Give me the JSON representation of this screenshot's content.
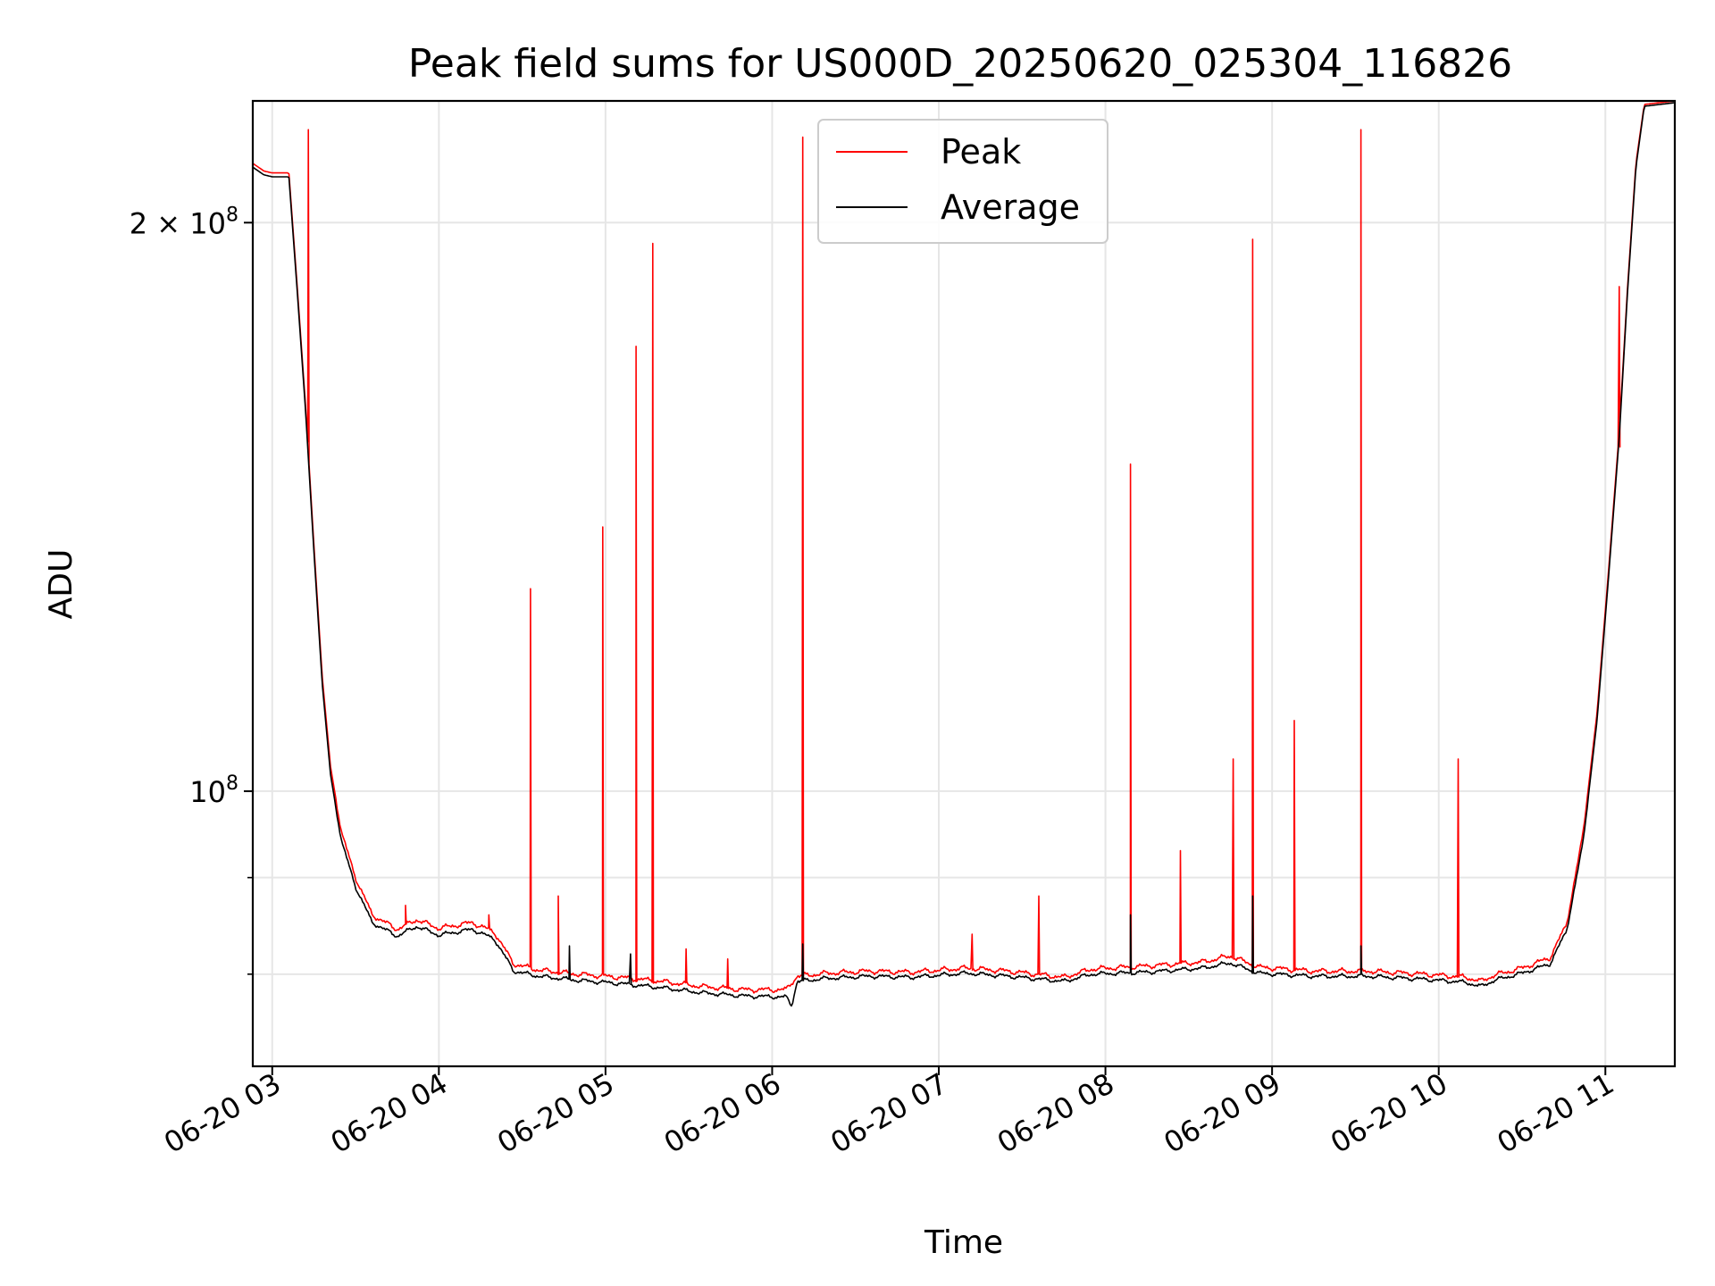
{
  "chart_data": {
    "type": "line",
    "title": "Peak field sums for US000D_20250620_025304_116826",
    "xlabel": "Time",
    "ylabel": "ADU",
    "yscale": "log",
    "grid": true,
    "legend_position": "top-center",
    "xlim": [
      "2025-06-20 02:53",
      "2025-06-20 11:25"
    ],
    "ylim": [
      71500000,
      232000000
    ],
    "x_ticks": [
      {
        "t": "2025-06-20 03:00",
        "label": "06-20 03"
      },
      {
        "t": "2025-06-20 04:00",
        "label": "06-20 04"
      },
      {
        "t": "2025-06-20 05:00",
        "label": "06-20 05"
      },
      {
        "t": "2025-06-20 06:00",
        "label": "06-20 06"
      },
      {
        "t": "2025-06-20 07:00",
        "label": "06-20 07"
      },
      {
        "t": "2025-06-20 08:00",
        "label": "06-20 08"
      },
      {
        "t": "2025-06-20 09:00",
        "label": "06-20 09"
      },
      {
        "t": "2025-06-20 10:00",
        "label": "06-20 10"
      },
      {
        "t": "2025-06-20 11:00",
        "label": "06-20 11"
      }
    ],
    "y_major_ticks": [
      {
        "value": 100000000,
        "base": "10",
        "exp": "8"
      },
      {
        "value": 200000000,
        "mant": "2",
        "base": "10",
        "exp": "8"
      }
    ],
    "y_minor_ticks": [
      80000000,
      90000000
    ],
    "series": [
      {
        "name": "Peak",
        "color": "#ff0000",
        "points": [
          [
            "2025-06-20 02:53",
            215000000
          ],
          [
            "2025-06-20 02:57",
            213000000
          ],
          [
            "2025-06-20 03:00",
            212500000
          ],
          [
            "2025-06-20 03:06",
            212500000
          ],
          [
            "2025-06-20 03:09",
            185000000
          ],
          [
            "2025-06-20 03:12",
            160000000
          ],
          [
            "2025-06-20 03:15",
            135000000
          ],
          [
            "2025-06-20 03:18",
            115000000
          ],
          [
            "2025-06-20 03:21",
            103000000
          ],
          [
            "2025-06-20 03:25",
            95000000
          ],
          [
            "2025-06-20 03:30",
            90000000
          ],
          [
            "2025-06-20 03:36",
            86000000
          ],
          [
            "2025-06-20 03:45",
            84500000
          ],
          [
            "2025-06-20 03:52",
            85500000
          ],
          [
            "2025-06-20 04:00",
            84600000
          ],
          [
            "2025-06-20 04:12",
            85200000
          ],
          [
            "2025-06-20 04:20",
            84200000
          ],
          [
            "2025-06-20 04:27",
            81000000
          ],
          [
            "2025-06-20 04:36",
            80400000
          ],
          [
            "2025-06-20 04:50",
            80000000
          ],
          [
            "2025-06-20 05:05",
            79700000
          ],
          [
            "2025-06-20 05:20",
            79300000
          ],
          [
            "2025-06-20 05:35",
            78800000
          ],
          [
            "2025-06-20 05:50",
            78500000
          ],
          [
            "2025-06-20 06:05",
            78500000
          ],
          [
            "2025-06-20 06:09",
            79800000
          ],
          [
            "2025-06-20 06:20",
            80100000
          ],
          [
            "2025-06-20 06:35",
            80300000
          ],
          [
            "2025-06-20 06:50",
            80200000
          ],
          [
            "2025-06-20 07:10",
            80600000
          ],
          [
            "2025-06-20 07:25",
            80300000
          ],
          [
            "2025-06-20 07:45",
            79700000
          ],
          [
            "2025-06-20 07:55",
            80500000
          ],
          [
            "2025-06-20 08:15",
            80800000
          ],
          [
            "2025-06-20 08:35",
            81200000
          ],
          [
            "2025-06-20 08:45",
            81800000
          ],
          [
            "2025-06-20 08:55",
            80700000
          ],
          [
            "2025-06-20 09:15",
            80300000
          ],
          [
            "2025-06-20 09:35",
            80300000
          ],
          [
            "2025-06-20 09:55",
            80000000
          ],
          [
            "2025-06-20 10:10",
            79700000
          ],
          [
            "2025-06-20 10:15",
            79300000
          ],
          [
            "2025-06-20 10:20",
            79900000
          ],
          [
            "2025-06-20 10:30",
            80600000
          ],
          [
            "2025-06-20 10:40",
            81600000
          ],
          [
            "2025-06-20 10:46",
            85000000
          ],
          [
            "2025-06-20 10:52",
            95000000
          ],
          [
            "2025-06-20 10:57",
            110000000
          ],
          [
            "2025-06-20 11:01",
            130000000
          ],
          [
            "2025-06-20 11:05",
            155000000
          ],
          [
            "2025-06-20 11:08",
            185000000
          ],
          [
            "2025-06-20 11:11",
            215000000
          ],
          [
            "2025-06-20 11:14",
            231000000
          ],
          [
            "2025-06-20 11:25",
            232000000
          ]
        ],
        "spikes": [
          [
            "2025-06-20 03:13",
            224000000
          ],
          [
            "2025-06-20 03:13",
            205000000
          ],
          [
            "2025-06-20 03:48",
            87000000
          ],
          [
            "2025-06-20 04:18",
            86000000
          ],
          [
            "2025-06-20 04:33",
            128000000
          ],
          [
            "2025-06-20 04:43",
            88000000
          ],
          [
            "2025-06-20 04:59",
            138000000
          ],
          [
            "2025-06-20 05:11",
            172000000
          ],
          [
            "2025-06-20 05:17",
            195000000
          ],
          [
            "2025-06-20 05:29",
            82500000
          ],
          [
            "2025-06-20 05:44",
            81500000
          ],
          [
            "2025-06-20 06:11",
            222000000
          ],
          [
            "2025-06-20 07:12",
            84000000
          ],
          [
            "2025-06-20 07:36",
            88000000
          ],
          [
            "2025-06-20 08:09",
            149000000
          ],
          [
            "2025-06-20 08:27",
            93000000
          ],
          [
            "2025-06-20 08:46",
            104000000
          ],
          [
            "2025-06-20 08:53",
            196000000
          ],
          [
            "2025-06-20 09:08",
            109000000
          ],
          [
            "2025-06-20 09:32",
            224000000
          ],
          [
            "2025-06-20 10:07",
            104000000
          ],
          [
            "2025-06-20 11:05",
            185000000
          ]
        ]
      },
      {
        "name": "Average",
        "color": "#000000",
        "points": [
          [
            "2025-06-20 02:53",
            214000000
          ],
          [
            "2025-06-20 02:57",
            212000000
          ],
          [
            "2025-06-20 03:00",
            211500000
          ],
          [
            "2025-06-20 03:06",
            211500000
          ],
          [
            "2025-06-20 03:09",
            184000000
          ],
          [
            "2025-06-20 03:12",
            159000000
          ],
          [
            "2025-06-20 03:15",
            134000000
          ],
          [
            "2025-06-20 03:18",
            114000000
          ],
          [
            "2025-06-20 03:21",
            102000000
          ],
          [
            "2025-06-20 03:25",
            94000000
          ],
          [
            "2025-06-20 03:30",
            89000000
          ],
          [
            "2025-06-20 03:36",
            85200000
          ],
          [
            "2025-06-20 03:45",
            83800000
          ],
          [
            "2025-06-20 03:52",
            84800000
          ],
          [
            "2025-06-20 04:00",
            83900000
          ],
          [
            "2025-06-20 04:12",
            84500000
          ],
          [
            "2025-06-20 04:20",
            83500000
          ],
          [
            "2025-06-20 04:27",
            80300000
          ],
          [
            "2025-06-20 04:36",
            79800000
          ],
          [
            "2025-06-20 04:50",
            79400000
          ],
          [
            "2025-06-20 05:05",
            79100000
          ],
          [
            "2025-06-20 05:20",
            78700000
          ],
          [
            "2025-06-20 05:35",
            78200000
          ],
          [
            "2025-06-20 05:50",
            77900000
          ],
          [
            "2025-06-20 06:05",
            77800000
          ],
          [
            "2025-06-20 06:07",
            77000000
          ],
          [
            "2025-06-20 06:09",
            79300000
          ],
          [
            "2025-06-20 06:20",
            79600000
          ],
          [
            "2025-06-20 06:35",
            79800000
          ],
          [
            "2025-06-20 06:50",
            79700000
          ],
          [
            "2025-06-20 07:10",
            80100000
          ],
          [
            "2025-06-20 07:25",
            79800000
          ],
          [
            "2025-06-20 07:45",
            79300000
          ],
          [
            "2025-06-20 07:55",
            80000000
          ],
          [
            "2025-06-20 08:15",
            80200000
          ],
          [
            "2025-06-20 08:35",
            80600000
          ],
          [
            "2025-06-20 08:45",
            81100000
          ],
          [
            "2025-06-20 08:55",
            80100000
          ],
          [
            "2025-06-20 09:15",
            79800000
          ],
          [
            "2025-06-20 09:35",
            79800000
          ],
          [
            "2025-06-20 09:55",
            79500000
          ],
          [
            "2025-06-20 10:10",
            79200000
          ],
          [
            "2025-06-20 10:15",
            78800000
          ],
          [
            "2025-06-20 10:20",
            79400000
          ],
          [
            "2025-06-20 10:30",
            80100000
          ],
          [
            "2025-06-20 10:40",
            81000000
          ],
          [
            "2025-06-20 10:46",
            84300000
          ],
          [
            "2025-06-20 10:52",
            94000000
          ],
          [
            "2025-06-20 10:57",
            109000000
          ],
          [
            "2025-06-20 11:01",
            129000000
          ],
          [
            "2025-06-20 11:05",
            154000000
          ],
          [
            "2025-06-20 11:08",
            184000000
          ],
          [
            "2025-06-20 11:11",
            214000000
          ],
          [
            "2025-06-20 11:14",
            230500000
          ],
          [
            "2025-06-20 11:25",
            231500000
          ]
        ],
        "spikes": [
          [
            "2025-06-20 04:47",
            82800000
          ],
          [
            "2025-06-20 05:09",
            82000000
          ],
          [
            "2025-06-20 06:11",
            83000000
          ],
          [
            "2025-06-20 08:09",
            86000000
          ],
          [
            "2025-06-20 08:53",
            88000000
          ],
          [
            "2025-06-20 09:32",
            82800000
          ]
        ]
      }
    ]
  }
}
